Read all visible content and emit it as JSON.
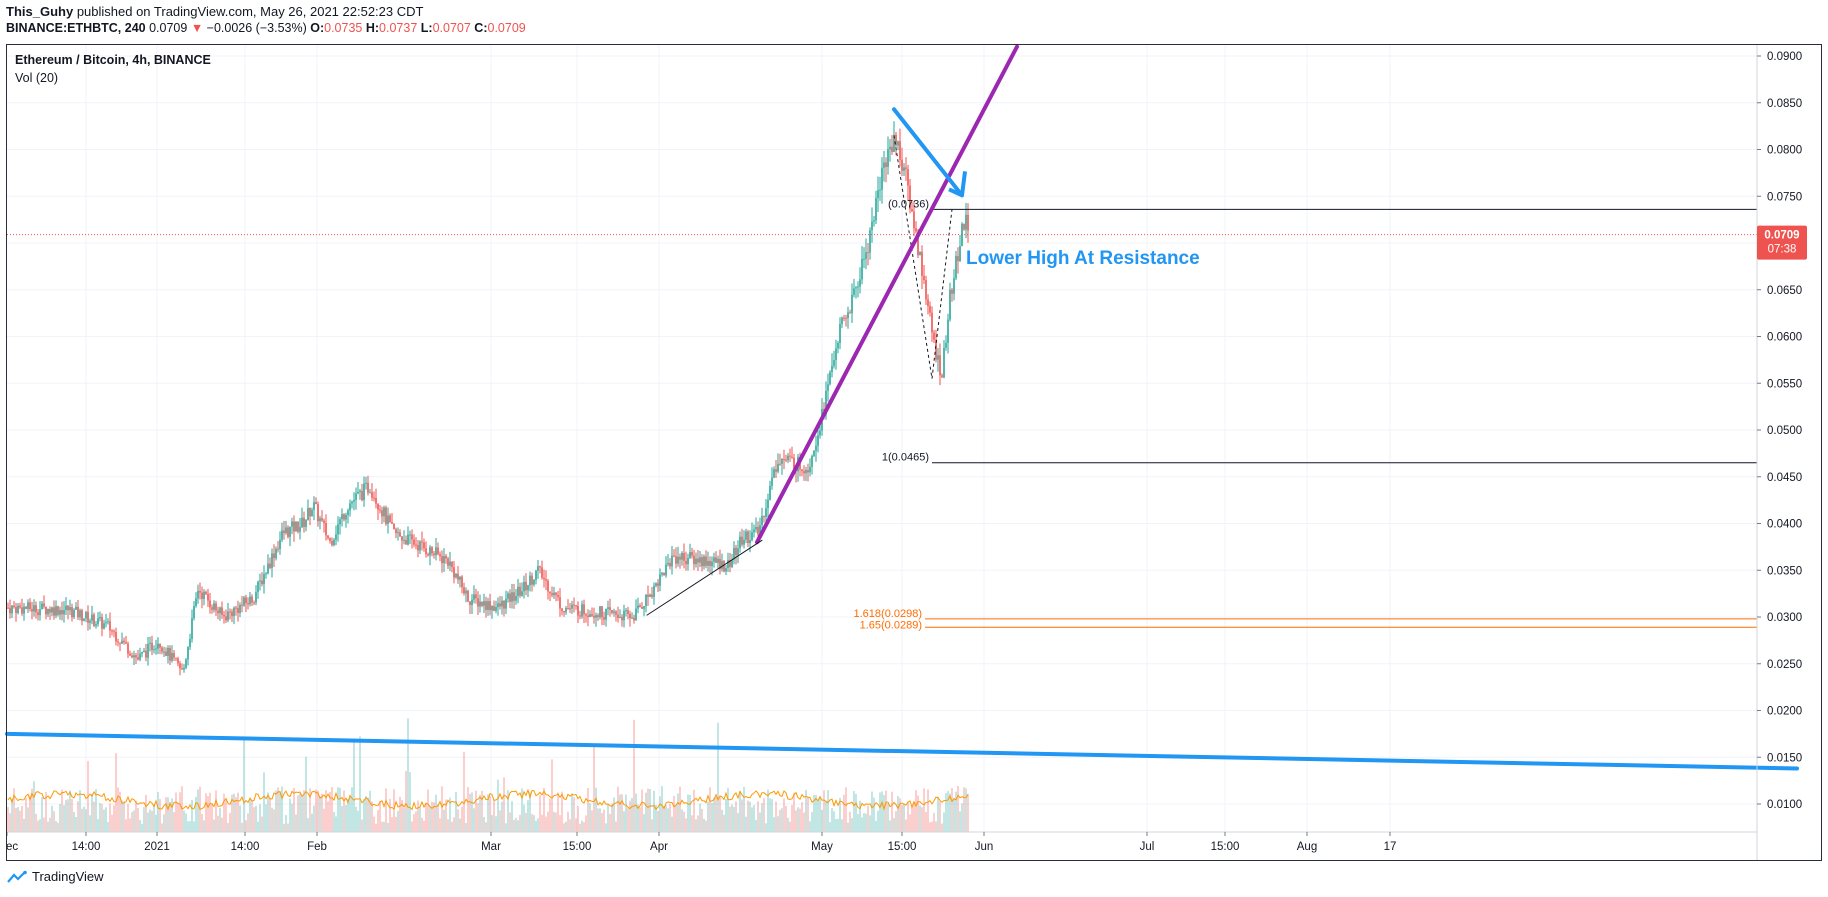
{
  "header": {
    "username": "This_Guhy",
    "published_text": "published on TradingView.com, May 26, 2021 22:52:23 CDT",
    "symbol": "BINANCE:ETHBTC, 240",
    "last": "0.0709",
    "change": "−0.0026 (−3.53%)",
    "open_label": "O:",
    "open": "0.0735",
    "high_label": "H:",
    "high": "0.0737",
    "low_label": "L:",
    "low": "0.0707",
    "close_label": "C:",
    "close": "0.0709"
  },
  "legend": {
    "title": "Ethereum / Bitcoin, 4h, BINANCE",
    "indicator": "Vol (20)"
  },
  "footer": {
    "brand": "TradingView"
  },
  "chart_data": {
    "type": "candlestick",
    "title": "Ethereum / Bitcoin, 4h, BINANCE",
    "ylim": [
      0.0067,
      0.092
    ],
    "y_ticks": [
      "0.0900",
      "0.0850",
      "0.0800",
      "0.0750",
      "0.0700",
      "0.0650",
      "0.0600",
      "0.0550",
      "0.0500",
      "0.0450",
      "0.0400",
      "0.0350",
      "0.0300",
      "0.0250",
      "0.0200",
      "0.0150",
      "0.0100"
    ],
    "x_ticks": [
      {
        "label": "ec",
        "t": -1
      },
      {
        "label": "14:00",
        "t": 79
      },
      {
        "label": "2021",
        "t": 150
      },
      {
        "label": "14:00",
        "t": 238
      },
      {
        "label": "Feb",
        "t": 310
      },
      {
        "label": "Mar",
        "t": 484
      },
      {
        "label": "15:00",
        "t": 570
      },
      {
        "label": "Apr",
        "t": 652
      },
      {
        "label": "May",
        "t": 815
      },
      {
        "label": "15:00",
        "t": 895
      },
      {
        "label": "Jun",
        "t": 977
      },
      {
        "label": "Jul",
        "t": 1140
      },
      {
        "label": "15:00",
        "t": 1218
      },
      {
        "label": "Aug",
        "t": 1300
      },
      {
        "label": "17",
        "t": 1383
      }
    ],
    "price_path": [
      [
        0,
        0.031
      ],
      [
        60,
        0.0308
      ],
      [
        100,
        0.029
      ],
      [
        130,
        0.0255
      ],
      [
        150,
        0.0275
      ],
      [
        175,
        0.024
      ],
      [
        190,
        0.033
      ],
      [
        215,
        0.03
      ],
      [
        245,
        0.032
      ],
      [
        275,
        0.039
      ],
      [
        295,
        0.04
      ],
      [
        305,
        0.042
      ],
      [
        322,
        0.038
      ],
      [
        340,
        0.042
      ],
      [
        362,
        0.044
      ],
      [
        385,
        0.039
      ],
      [
        405,
        0.038
      ],
      [
        440,
        0.036
      ],
      [
        460,
        0.032
      ],
      [
        490,
        0.031
      ],
      [
        515,
        0.033
      ],
      [
        530,
        0.035
      ],
      [
        555,
        0.031
      ],
      [
        590,
        0.0305
      ],
      [
        625,
        0.03
      ],
      [
        645,
        0.033
      ],
      [
        665,
        0.0365
      ],
      [
        700,
        0.036
      ],
      [
        720,
        0.0355
      ],
      [
        735,
        0.0385
      ],
      [
        750,
        0.039
      ],
      [
        770,
        0.047
      ],
      [
        800,
        0.046
      ],
      [
        815,
        0.052
      ],
      [
        830,
        0.06
      ],
      [
        845,
        0.064
      ],
      [
        860,
        0.07
      ],
      [
        875,
        0.078
      ],
      [
        886,
        0.0815
      ],
      [
        896,
        0.078
      ],
      [
        906,
        0.072
      ],
      [
        916,
        0.066
      ],
      [
        926,
        0.059
      ],
      [
        934,
        0.056
      ],
      [
        942,
        0.064
      ],
      [
        952,
        0.07
      ],
      [
        958,
        0.0737
      ],
      [
        960,
        0.0709
      ]
    ],
    "current_price": "0.0709",
    "countdown": "07:38",
    "fib_levels": [
      {
        "label": "(0.0736)",
        "price": 0.0736
      },
      {
        "label": "1(0.0465)",
        "price": 0.0465
      },
      {
        "label": "1.618(0.0298)",
        "price": 0.0298
      },
      {
        "label": "1.65(0.0289)",
        "price": 0.0289
      }
    ],
    "trendlines": [
      {
        "name": "purple-support",
        "color": "#9c27b0",
        "points": [
          [
            750,
            0.038
          ],
          [
            1010,
            0.091
          ]
        ]
      },
      {
        "name": "blue-long-term",
        "color": "#2196f3",
        "points": [
          [
            0,
            0.0175
          ],
          [
            1790,
            0.0138
          ]
        ]
      },
      {
        "name": "blue-arrow",
        "color": "#2196f3",
        "points": [
          [
            887,
            0.0843
          ],
          [
            955,
            0.0751
          ]
        ]
      },
      {
        "name": "black-base",
        "color": "#131722",
        "points": [
          [
            640,
            0.0302
          ],
          [
            755,
            0.0382
          ]
        ]
      }
    ],
    "annotation": "Lower High At Resistance",
    "volume": {
      "name": "Vol (20)",
      "ma_color": "#ff9800"
    }
  },
  "colors": {
    "up": "#26a69a",
    "down": "#ef5350",
    "fib_orange": "#ff6d00",
    "annotation_blue": "#2196f3",
    "grid": "#f0f3fa"
  }
}
